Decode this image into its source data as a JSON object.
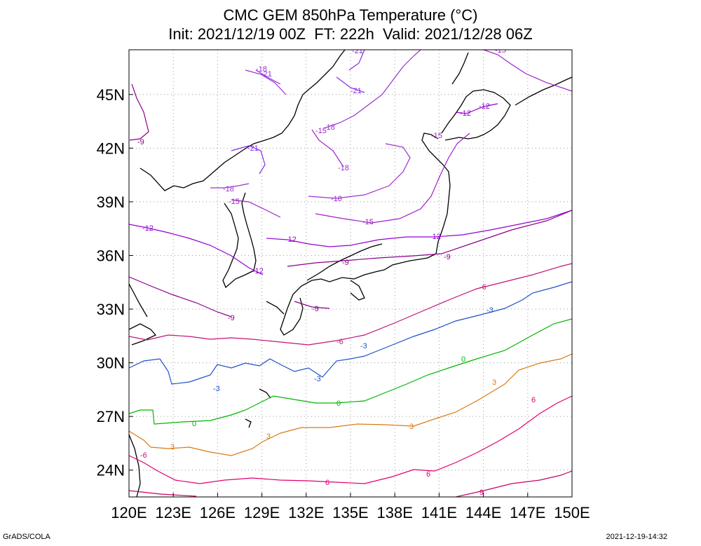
{
  "title": {
    "line1": "CMC GEM 850hPa Temperature (°C)",
    "line2": "Init: 2021/12/19 00Z  FT: 222h  Valid: 2021/12/28 06Z"
  },
  "footer": {
    "left": "GrADS/COLA",
    "right": "2021-12-19-14:32"
  },
  "map": {
    "lon_range": [
      120,
      150
    ],
    "lat_range": [
      22.5,
      47.5
    ],
    "lon_ticks": [
      "120E",
      "123E",
      "126E",
      "129E",
      "132E",
      "135E",
      "138E",
      "141E",
      "144E",
      "147E",
      "150E"
    ],
    "lat_ticks": [
      "24N",
      "27N",
      "30N",
      "33N",
      "36N",
      "39N",
      "42N",
      "45N"
    ],
    "grid": true,
    "colors": {
      "-21": "#8a2be2",
      "-18": "#9b30d0",
      "-15": "#a020c8",
      "-12": "#9400d3",
      "-9": "#8b008b",
      "-6": "#c0137a",
      "-3": "#1f4fc8",
      "0": "#00b400",
      "3": "#d97a16",
      "6": "#e0006e",
      "9": "#c80064"
    },
    "contours": [
      {
        "level": -21,
        "label": "-21"
      },
      {
        "level": -18,
        "label": "-18"
      },
      {
        "level": -15,
        "label": "-15"
      },
      {
        "level": -12,
        "label": "-12"
      },
      {
        "level": -9,
        "label": "-9"
      },
      {
        "level": -6,
        "label": "-6"
      },
      {
        "level": -3,
        "label": "-3"
      },
      {
        "level": 0,
        "label": "0"
      },
      {
        "level": 3,
        "label": "3"
      },
      {
        "level": 6,
        "label": "6"
      },
      {
        "level": 9,
        "label": "9"
      }
    ]
  }
}
